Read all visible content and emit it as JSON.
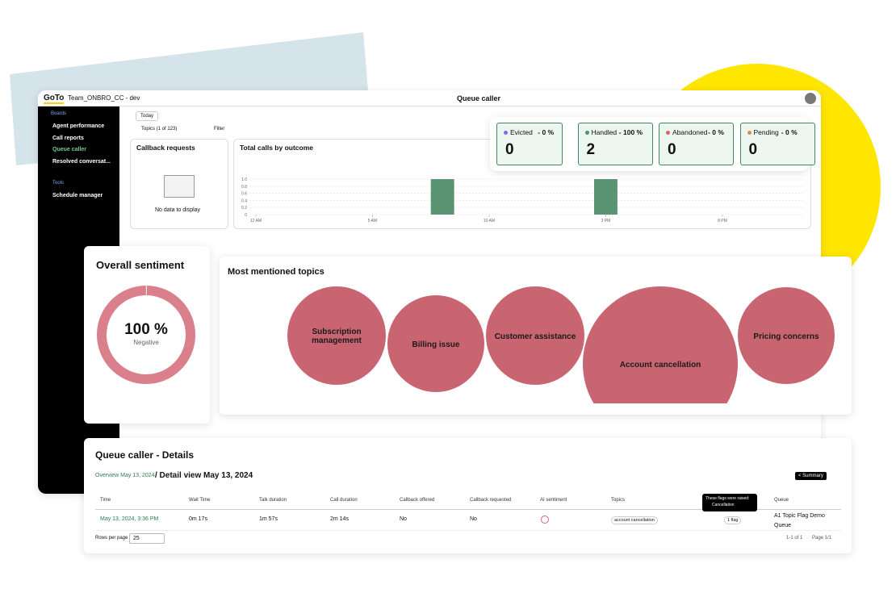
{
  "header": {
    "logo": "GoTo",
    "workspace": "Team_ONBRO_CC - dev",
    "title": "Queue caller"
  },
  "sidebar": {
    "boards": "Boards",
    "items": [
      "Agent performance",
      "Call reports",
      "Queue caller",
      "Resolved conversat..."
    ],
    "tools": "Tools",
    "tool_items": [
      "Schedule manager"
    ]
  },
  "toolbar": {
    "date": "Today",
    "topics": "Topics (1 of 123)",
    "filter": "Filter"
  },
  "stats": [
    {
      "label": "Evicted",
      "percent": "- 0 %",
      "value": 0,
      "color": "#7b6ee6"
    },
    {
      "label": "Handled",
      "percent": "- 100 %",
      "value": 2,
      "color": "#3f9a63"
    },
    {
      "label": "Abandoned",
      "percent": "- 0 %",
      "value": 0,
      "color": "#d9646e"
    },
    {
      "label": "Pending",
      "percent": "- 0 %",
      "value": 0,
      "color": "#e08a4a"
    }
  ],
  "callback": {
    "title": "Callback requests",
    "empty": "No data to display"
  },
  "chart_data": {
    "type": "bar",
    "title": "Total calls by outcome",
    "x": [
      8,
      15
    ],
    "values": [
      1,
      1
    ],
    "color": "#5a9472",
    "xlim": [
      -0.5,
      23.5
    ],
    "xticks": [
      {
        "value": 0,
        "label": "12 AM"
      },
      {
        "value": 5,
        "label": "5 AM"
      },
      {
        "value": 10,
        "label": "10 AM"
      },
      {
        "value": 15,
        "label": "3 PM"
      },
      {
        "value": 20,
        "label": "8 PM"
      }
    ],
    "ylim": [
      0,
      1
    ],
    "yticks": [
      0,
      0.2,
      0.4,
      0.6,
      0.8,
      {
        "value": 1,
        "label": "1.0"
      }
    ],
    "grid": true
  },
  "sentiment": {
    "title": "Overall sentiment",
    "percent": 100,
    "percent_label": "100 %",
    "label": "Negative"
  },
  "topics": {
    "title": "Most mentioned topics",
    "items": [
      "Subscription management",
      "Billing issue",
      "Customer assistance",
      "Account cancellation",
      "Pricing concerns"
    ]
  },
  "details": {
    "title": "Queue caller - Details",
    "breadcrumb": "Overview May 13, 2024",
    "view": "/ Detail view May 13, 2024",
    "summary": "< Summary",
    "columns": [
      "Time",
      "Wait Time",
      "Talk duration",
      "Call duration",
      "Callback offered",
      "Callback requested",
      "AI sentiment",
      "Topics",
      "Queue"
    ],
    "rows": [
      [
        "May 13, 2024, 3:36 PM",
        "0m 17s",
        "1m 57s",
        "2m 14s",
        "No",
        "No",
        "account cancellation",
        "1 flag",
        "A1 Topic Flag Demo Queue"
      ]
    ],
    "tooltip": {
      "title": "These flags were raised:",
      "item": "Cancellation"
    },
    "rows_per_page_label": "Rows per page",
    "rows_per_page": "25",
    "range": "1-1 of 1",
    "page": "Page 1/1"
  }
}
